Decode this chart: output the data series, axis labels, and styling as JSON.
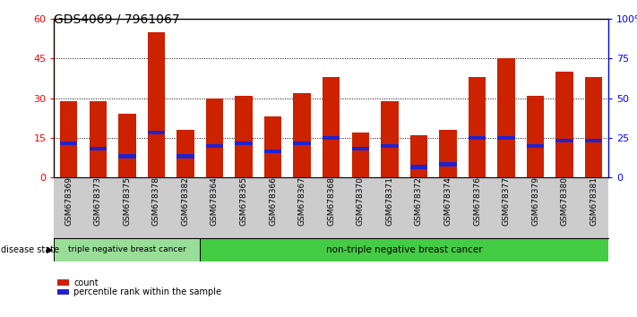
{
  "title": "GDS4069 / 7961067",
  "samples": [
    "GSM678369",
    "GSM678373",
    "GSM678375",
    "GSM678378",
    "GSM678382",
    "GSM678364",
    "GSM678365",
    "GSM678366",
    "GSM678367",
    "GSM678368",
    "GSM678370",
    "GSM678371",
    "GSM678372",
    "GSM678374",
    "GSM678376",
    "GSM678377",
    "GSM678379",
    "GSM678380",
    "GSM678381"
  ],
  "counts": [
    29,
    29,
    24,
    55,
    18,
    30,
    31,
    23,
    32,
    38,
    17,
    29,
    16,
    18,
    38,
    45,
    31,
    40,
    38
  ],
  "percentile_values": [
    13,
    11,
    8,
    17,
    8,
    12,
    13,
    10,
    13,
    15,
    11,
    12,
    4,
    5,
    15,
    15,
    12,
    14,
    14
  ],
  "bar_color": "#cc2200",
  "blue_color": "#2222cc",
  "ylim_left": [
    0,
    60
  ],
  "ylim_right": [
    0,
    100
  ],
  "yticks_left": [
    0,
    15,
    30,
    45,
    60
  ],
  "ytick_labels_right": [
    "0",
    "25",
    "50",
    "75",
    "100%"
  ],
  "group1_label": "triple negative breast cancer",
  "group2_label": "non-triple negative breast cancer",
  "group1_count": 5,
  "group2_count": 14,
  "legend_count_label": "count",
  "legend_percentile_label": "percentile rank within the sample",
  "disease_state_label": "disease state",
  "bg_color": "#ffffff",
  "group1_bg": "#99dd99",
  "group2_bg": "#44cc44",
  "tick_area_bg": "#cccccc"
}
